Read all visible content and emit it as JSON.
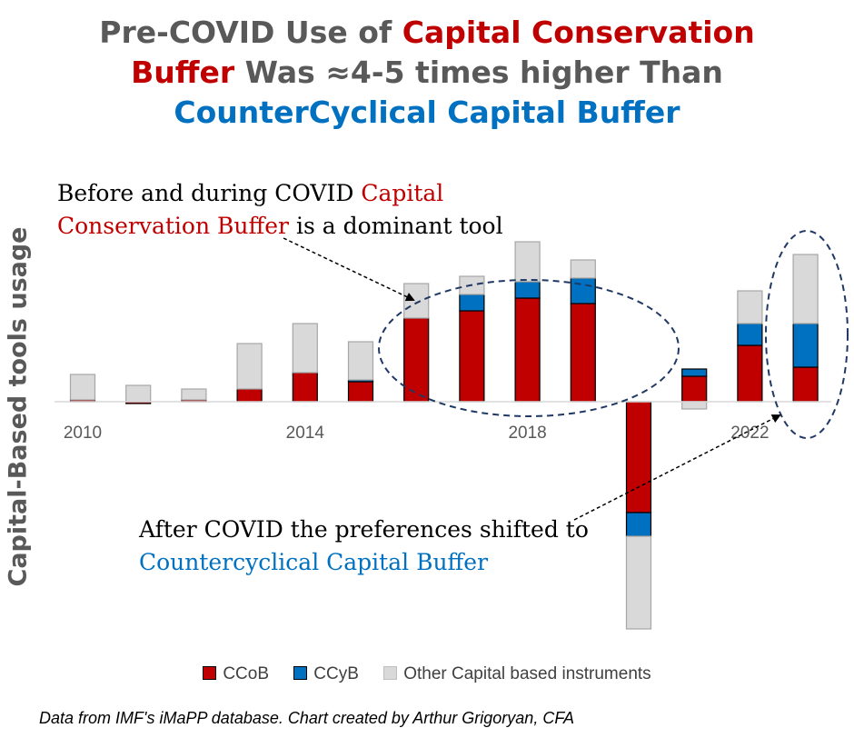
{
  "title": {
    "line1_a": "Pre-COVID Use of ",
    "line1_b": "Capital Conservation",
    "line2_a": "Buffer",
    "line2_b": " Was ≈4-5 times higher Than",
    "line3": "CounterCyclical Capital Buffer"
  },
  "annotations": {
    "pre_covid_a": "Before and during COVID ",
    "pre_covid_b": "Capital Conservation Buffer",
    "pre_covid_c": " is a dominant tool",
    "post_covid_a": "After COVID the preferences shifted to ",
    "post_covid_b": "Countercyclical Capital Buffer"
  },
  "source": "Data from IMF's iMaPP database. Chart created by Arthur Grigoryan, CFA",
  "colors": {
    "ccob": "#c00000",
    "ccyb": "#0070c0",
    "other": "#d9d9d9",
    "title_gray": "#595959"
  },
  "chart_data": {
    "type": "bar",
    "stacked": true,
    "ylabel": "Capital-Based tools usage",
    "x": [
      2010,
      2011,
      2012,
      2013,
      2014,
      2015,
      2016,
      2017,
      2018,
      2019,
      2020,
      2021,
      2022,
      2023
    ],
    "x_tick_labels": [
      "2010",
      "2014",
      "2018",
      "2022"
    ],
    "series": [
      {
        "name": "CCoB",
        "values": [
          1,
          -1,
          1,
          7,
          16,
          11,
          46,
          50,
          57,
          54,
          -61,
          14,
          31,
          19
        ]
      },
      {
        "name": "CCyB",
        "values": [
          0,
          0,
          0,
          0,
          0,
          1,
          0,
          9,
          9,
          14,
          -13,
          4,
          12,
          24
        ]
      },
      {
        "name": "Other Capital based instruments",
        "values": [
          14,
          9,
          6,
          25,
          27,
          21,
          19,
          10,
          22,
          10,
          -51,
          -4,
          18,
          38
        ]
      }
    ],
    "ylim": [
      -126,
      90
    ],
    "grid": false,
    "legend": "bottom"
  }
}
